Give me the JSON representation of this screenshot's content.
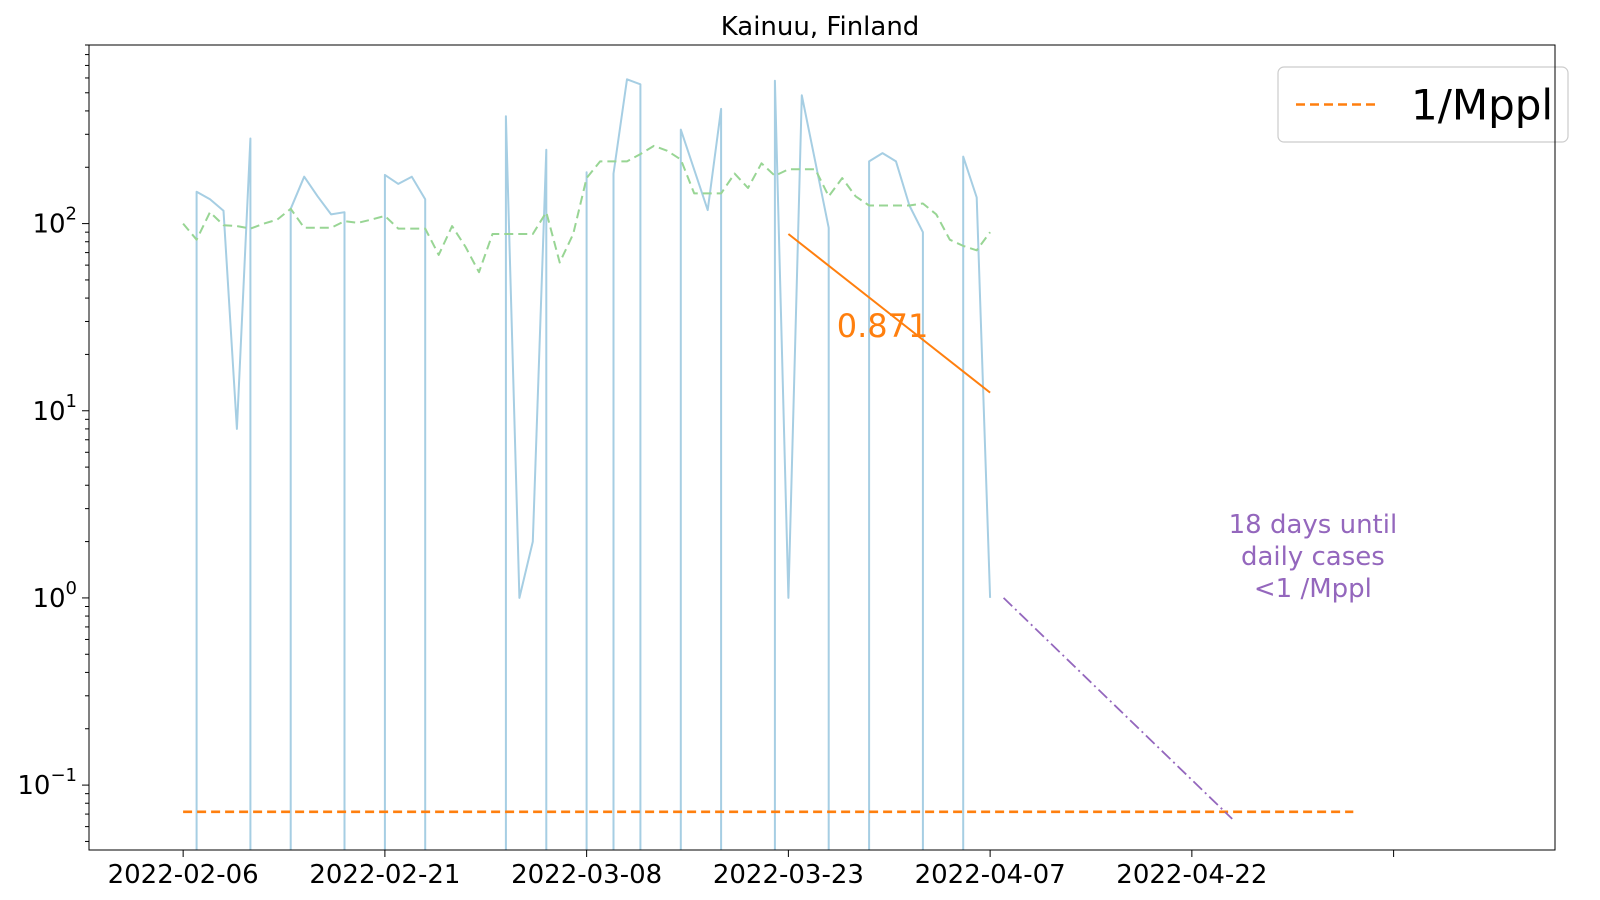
{
  "chart_data": {
    "type": "line",
    "title": "Kainuu, Finland",
    "xlabel": "",
    "ylabel": "",
    "yscale": "log",
    "xlim": [
      "2022-01-30",
      "2022-05-19"
    ],
    "ylim": [
      0.045,
      900
    ],
    "x_tick_labels": [
      "2022-02-06",
      "2022-02-21",
      "2022-03-08",
      "2022-03-23",
      "2022-04-07",
      "2022-04-22"
    ],
    "y_ticks": [
      {
        "value": 0.1,
        "base": "10",
        "exp": "−1"
      },
      {
        "value": 1,
        "base": "10",
        "exp": "0"
      },
      {
        "value": 10,
        "base": "10",
        "exp": "1"
      },
      {
        "value": 100,
        "base": "10",
        "exp": "2"
      }
    ],
    "grid": false,
    "legend": {
      "position": "top-right",
      "entries": [
        {
          "label": "1/Mppl",
          "color": "#ff7f0e",
          "style": "dashed"
        }
      ]
    },
    "series": [
      {
        "color": "#a6cee3",
        "style": "solid",
        "points": [
          [
            "2022-02-07",
            0.03
          ],
          [
            "2022-02-07",
            148
          ],
          [
            "2022-02-08",
            135
          ],
          [
            "2022-02-09",
            117
          ],
          [
            "2022-02-10",
            8
          ],
          [
            "2022-02-11",
            285
          ],
          [
            "2022-02-11",
            0.03
          ],
          [
            "2022-02-14",
            0.03
          ],
          [
            "2022-02-14",
            120
          ],
          [
            "2022-02-15",
            178
          ],
          [
            "2022-02-16",
            140
          ],
          [
            "2022-02-17",
            112
          ],
          [
            "2022-02-18",
            115
          ],
          [
            "2022-02-18",
            0.03
          ],
          [
            "2022-02-21",
            0.03
          ],
          [
            "2022-02-21",
            182
          ],
          [
            "2022-02-22",
            163
          ],
          [
            "2022-02-23",
            178
          ],
          [
            "2022-02-24",
            135
          ],
          [
            "2022-02-24",
            0.03
          ],
          [
            "2022-03-02",
            0.03
          ],
          [
            "2022-03-02",
            375
          ],
          [
            "2022-03-03",
            1
          ],
          [
            "2022-03-04",
            2
          ],
          [
            "2022-03-05",
            248
          ],
          [
            "2022-03-05",
            0.03
          ],
          [
            "2022-03-08",
            0.03
          ],
          [
            "2022-03-08",
            188
          ],
          [
            "2022-03-08",
            0.03
          ],
          [
            "2022-03-10",
            0.03
          ],
          [
            "2022-03-10",
            185
          ],
          [
            "2022-03-11",
            590
          ],
          [
            "2022-03-12",
            555
          ],
          [
            "2022-03-12",
            0.03
          ],
          [
            "2022-03-15",
            0.03
          ],
          [
            "2022-03-15",
            318
          ],
          [
            "2022-03-17",
            118
          ],
          [
            "2022-03-18",
            410
          ],
          [
            "2022-03-18",
            0.03
          ],
          [
            "2022-03-22",
            0.03
          ],
          [
            "2022-03-22",
            580
          ],
          [
            "2022-03-23",
            1
          ],
          [
            "2022-03-24",
            485
          ],
          [
            "2022-03-26",
            95
          ],
          [
            "2022-03-26",
            0.03
          ],
          [
            "2022-03-29",
            0.03
          ],
          [
            "2022-03-29",
            215
          ],
          [
            "2022-03-30",
            238
          ],
          [
            "2022-03-31",
            215
          ],
          [
            "2022-04-01",
            125
          ],
          [
            "2022-04-02",
            90
          ],
          [
            "2022-04-02",
            0.03
          ],
          [
            "2022-04-05",
            0.03
          ],
          [
            "2022-04-05",
            228
          ],
          [
            "2022-04-06",
            138
          ],
          [
            "2022-04-07",
            1
          ]
        ]
      },
      {
        "color": "#98d594",
        "style": "dashed",
        "points": [
          [
            "2022-02-06",
            100
          ],
          [
            "2022-02-07",
            82
          ],
          [
            "2022-02-08",
            115
          ],
          [
            "2022-02-09",
            98
          ],
          [
            "2022-02-10",
            97
          ],
          [
            "2022-02-11",
            94
          ],
          [
            "2022-02-12",
            100
          ],
          [
            "2022-02-13",
            105
          ],
          [
            "2022-02-14",
            120
          ],
          [
            "2022-02-15",
            95
          ],
          [
            "2022-02-16",
            95
          ],
          [
            "2022-02-17",
            95
          ],
          [
            "2022-02-18",
            103
          ],
          [
            "2022-02-19",
            101
          ],
          [
            "2022-02-20",
            105
          ],
          [
            "2022-02-21",
            110
          ],
          [
            "2022-02-22",
            94
          ],
          [
            "2022-02-23",
            94
          ],
          [
            "2022-02-24",
            94
          ],
          [
            "2022-02-25",
            68
          ],
          [
            "2022-02-26",
            97
          ],
          [
            "2022-02-27",
            75
          ],
          [
            "2022-02-28",
            55
          ],
          [
            "2022-03-01",
            88
          ],
          [
            "2022-03-02",
            88
          ],
          [
            "2022-03-03",
            88
          ],
          [
            "2022-03-04",
            88
          ],
          [
            "2022-03-05",
            115
          ],
          [
            "2022-03-06",
            62
          ],
          [
            "2022-03-07",
            88
          ],
          [
            "2022-03-08",
            175
          ],
          [
            "2022-03-09",
            215
          ],
          [
            "2022-03-10",
            215
          ],
          [
            "2022-03-11",
            215
          ],
          [
            "2022-03-12",
            235
          ],
          [
            "2022-03-13",
            260
          ],
          [
            "2022-03-14",
            245
          ],
          [
            "2022-03-15",
            220
          ],
          [
            "2022-03-16",
            145
          ],
          [
            "2022-03-17",
            145
          ],
          [
            "2022-03-18",
            145
          ],
          [
            "2022-03-19",
            185
          ],
          [
            "2022-03-20",
            155
          ],
          [
            "2022-03-21",
            210
          ],
          [
            "2022-03-22",
            180
          ],
          [
            "2022-03-23",
            195
          ],
          [
            "2022-03-24",
            195
          ],
          [
            "2022-03-25",
            195
          ],
          [
            "2022-03-26",
            140
          ],
          [
            "2022-03-27",
            175
          ],
          [
            "2022-03-28",
            140
          ],
          [
            "2022-03-29",
            125
          ],
          [
            "2022-03-30",
            125
          ],
          [
            "2022-03-31",
            125
          ],
          [
            "2022-04-01",
            125
          ],
          [
            "2022-04-02",
            128
          ],
          [
            "2022-04-03",
            112
          ],
          [
            "2022-04-04",
            82
          ],
          [
            "2022-04-05",
            76
          ],
          [
            "2022-04-06",
            72
          ],
          [
            "2022-04-07",
            90
          ]
        ]
      },
      {
        "color": "#ff7f0e",
        "style": "solid",
        "points": [
          [
            "2022-03-23",
            88
          ],
          [
            "2022-04-07",
            12.5
          ]
        ]
      },
      {
        "color": "#ff7f0e",
        "style": "dashed",
        "points": [
          [
            "2022-02-06",
            0.072
          ],
          [
            "2022-05-04",
            0.072
          ]
        ]
      },
      {
        "color": "#9467bd",
        "style": "dashdot",
        "points": [
          [
            "2022-04-08",
            1
          ],
          [
            "2022-04-25",
            0.066
          ]
        ]
      }
    ],
    "annotations": [
      {
        "text": "0.871",
        "x": "2022-03-30",
        "y": 28,
        "color": "#ff7f0e"
      },
      {
        "lines": [
          "18 days until",
          "daily cases",
          "<1 /Mppl"
        ],
        "x": "2022-05-01",
        "y": 1.5,
        "color": "#9467bd"
      }
    ]
  }
}
